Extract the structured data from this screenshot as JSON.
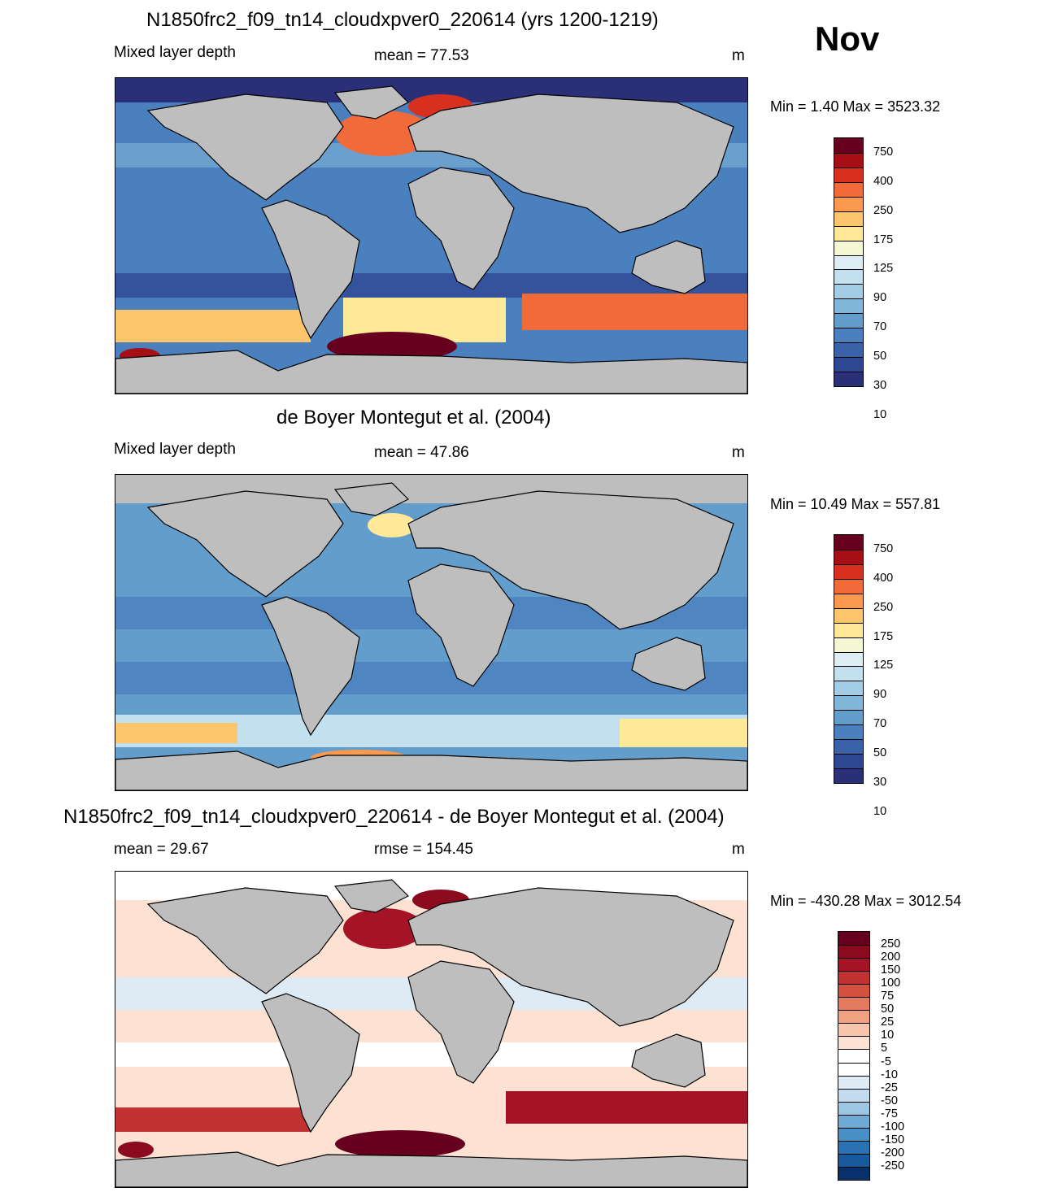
{
  "month": "Nov",
  "panels": [
    {
      "title": "N1850frc2_f09_tn14_cloudxpver0_220614 (yrs 1200-1219)",
      "left_label": "Mixed layer depth",
      "center_label": "mean =  77.53",
      "unit": "m",
      "minmax": "Min =   1.40 Max = 3523.32"
    },
    {
      "title": "de Boyer Montegut et al. (2004)",
      "left_label": "Mixed layer depth",
      "center_label": "mean =  47.86",
      "unit": "m",
      "minmax": "Min =  10.49 Max = 557.81"
    },
    {
      "title": "N1850frc2_f09_tn14_cloudxpver0_220614 - de Boyer Montegut et al. (2004)",
      "left_label": "mean =  29.67",
      "center_label": "rmse = 154.45",
      "unit": "m",
      "minmax": "Min = -430.28 Max = 3012.54"
    }
  ],
  "colorbar_abs": {
    "labels": [
      "750",
      "400",
      "250",
      "175",
      "125",
      "90",
      "70",
      "50",
      "30",
      "10"
    ],
    "colors": [
      "#67001f",
      "#a50f15",
      "#d7301f",
      "#f16a3a",
      "#fb9a4e",
      "#fdc66d",
      "#fee999",
      "#f4f7d2",
      "#dfeef4",
      "#c3e0ee",
      "#a3cde4",
      "#82b6d8",
      "#639dcb",
      "#4a80bd",
      "#3a62a8",
      "#2e4793",
      "#2b2f78"
    ]
  },
  "colorbar_diff": {
    "labels": [
      "250",
      "200",
      "150",
      "100",
      "75",
      "50",
      "25",
      "10",
      "5",
      "-5",
      "-10",
      "-25",
      "-50",
      "-75",
      "-100",
      "-150",
      "-200",
      "-250"
    ],
    "colors": [
      "#67001f",
      "#8b0a1e",
      "#a51426",
      "#c13233",
      "#d4533f",
      "#e47a5d",
      "#f0a182",
      "#f8c6ad",
      "#fde2d4",
      "#ffffff",
      "#ffffff",
      "#deebf5",
      "#c3dbee",
      "#9dc6e3",
      "#6faad4",
      "#478fc4",
      "#2a72b1",
      "#175b9c",
      "#08306b"
    ]
  }
}
